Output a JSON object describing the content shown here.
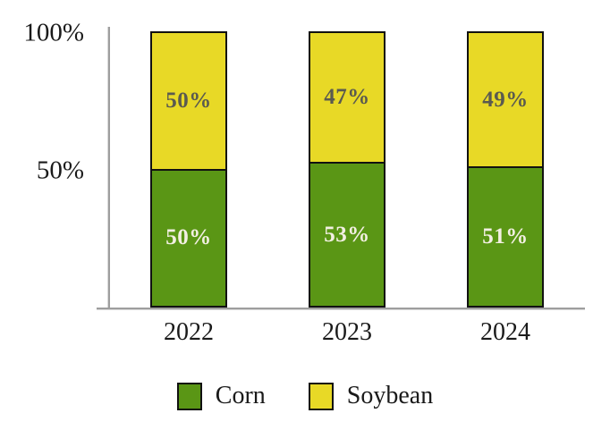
{
  "chart_data": {
    "type": "bar",
    "variant": "stacked-100",
    "title": "",
    "xlabel": "",
    "ylabel": "",
    "categories": [
      "2022",
      "2023",
      "2024"
    ],
    "series": [
      {
        "name": "Corn",
        "color": "#5a9615",
        "values": [
          50,
          53,
          51
        ],
        "labels": [
          "50%",
          "53%",
          "51%"
        ],
        "label_color": "#f2efe2"
      },
      {
        "name": "Soybean",
        "color": "#e8d926",
        "values": [
          50,
          47,
          49
        ],
        "labels": [
          "50%",
          "47%",
          "49%"
        ],
        "label_color": "#5a5a50"
      }
    ],
    "y_ticks": [
      "100%",
      "50%"
    ],
    "ylim": [
      0,
      100
    ],
    "grid": false,
    "legend_position": "bottom"
  },
  "colors": {
    "axis": "#9e9e9e",
    "bar_border": "#111111",
    "background": "#ffffff"
  }
}
